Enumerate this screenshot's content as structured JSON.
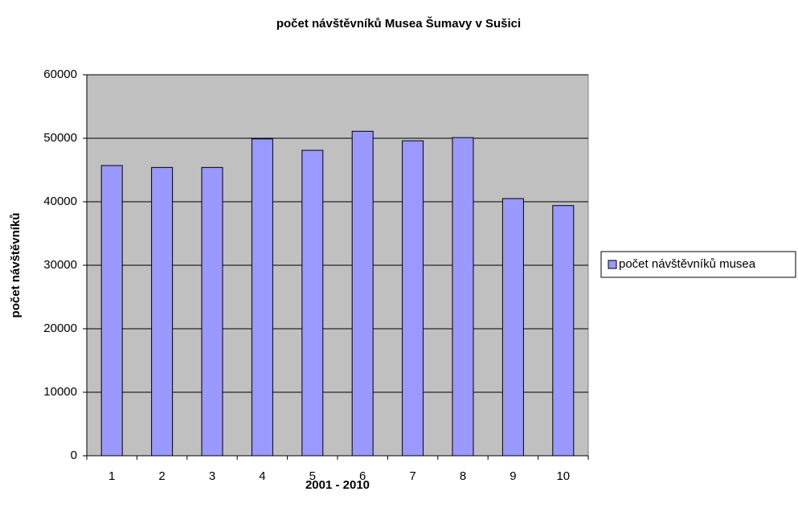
{
  "chart_data": {
    "type": "bar",
    "title": "počet návštěvníků Musea Šumavy v Sušici",
    "x_label": "2001 - 2010",
    "y_label": "počet návštěvníků",
    "categories": [
      "1",
      "2",
      "3",
      "4",
      "5",
      "6",
      "7",
      "8",
      "9",
      "10"
    ],
    "series": [
      {
        "name": "počet návštěvníků musea",
        "color": "#9999ff",
        "values": [
          45700,
          45400,
          45400,
          49900,
          48100,
          51100,
          49600,
          50100,
          40500,
          39400
        ]
      }
    ],
    "ylim": [
      0,
      60000
    ],
    "yticks": [
      0,
      10000,
      20000,
      30000,
      40000,
      50000,
      60000
    ],
    "grid": true,
    "plot_background": "#c0c0c0",
    "legend": "right"
  }
}
